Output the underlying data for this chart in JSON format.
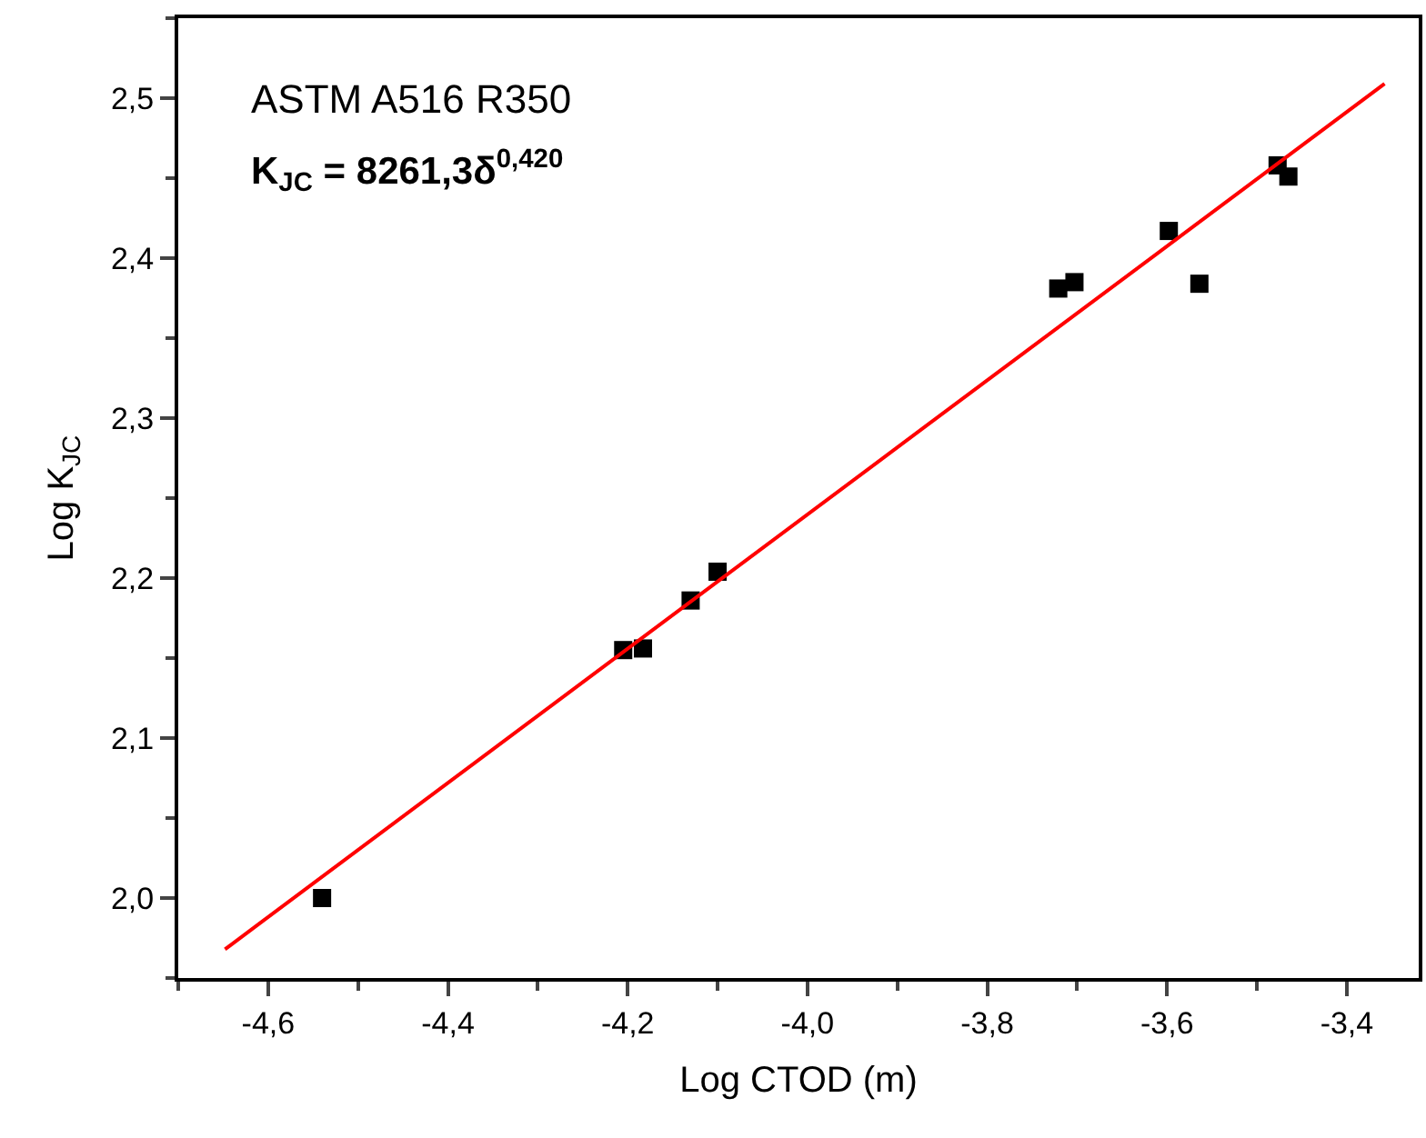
{
  "chart_data": {
    "type": "scatter",
    "xlabel": "Log CTOD (m)",
    "ylabel": "Log K$_{JC}$",
    "xlim": [
      -4.7,
      -3.32
    ],
    "ylim": [
      1.95,
      2.55
    ],
    "xticks": [
      {
        "value": -4.6,
        "label": "-4,6"
      },
      {
        "value": -4.4,
        "label": "-4,4"
      },
      {
        "value": -4.2,
        "label": "-4,2"
      },
      {
        "value": -4.0,
        "label": "-4,0"
      },
      {
        "value": -3.8,
        "label": "-3,8"
      },
      {
        "value": -3.6,
        "label": "-3,6"
      },
      {
        "value": -3.4,
        "label": "-3,4"
      }
    ],
    "yticks": [
      {
        "value": 2.0,
        "label": "2,0"
      },
      {
        "value": 2.1,
        "label": "2,1"
      },
      {
        "value": 2.2,
        "label": "2,2"
      },
      {
        "value": 2.3,
        "label": "2,3"
      },
      {
        "value": 2.4,
        "label": "2,4"
      },
      {
        "value": 2.5,
        "label": "2,5"
      }
    ],
    "legend": false,
    "marker": "square",
    "annotations": [
      "ASTM A516 R350",
      "K$_{JC}$ = 8261,3δ$^{0,420}$"
    ],
    "series": [
      {
        "color": "#000000",
        "x": [
          -4.54,
          -4.205,
          -4.183,
          -4.13,
          -4.1,
          -3.721,
          -3.703,
          -3.598,
          -3.564,
          -3.477,
          -3.465
        ],
        "values": [
          2.0,
          2.155,
          2.156,
          2.186,
          2.204,
          2.381,
          2.385,
          2.417,
          2.384,
          2.458,
          2.451
        ]
      },
      {
        "type": "line",
        "marker": "none",
        "color": "#ff0000",
        "line_style": "solid",
        "x": [
          -4.648,
          -3.358
        ],
        "values": [
          1.968,
          2.509
        ]
      }
    ]
  }
}
